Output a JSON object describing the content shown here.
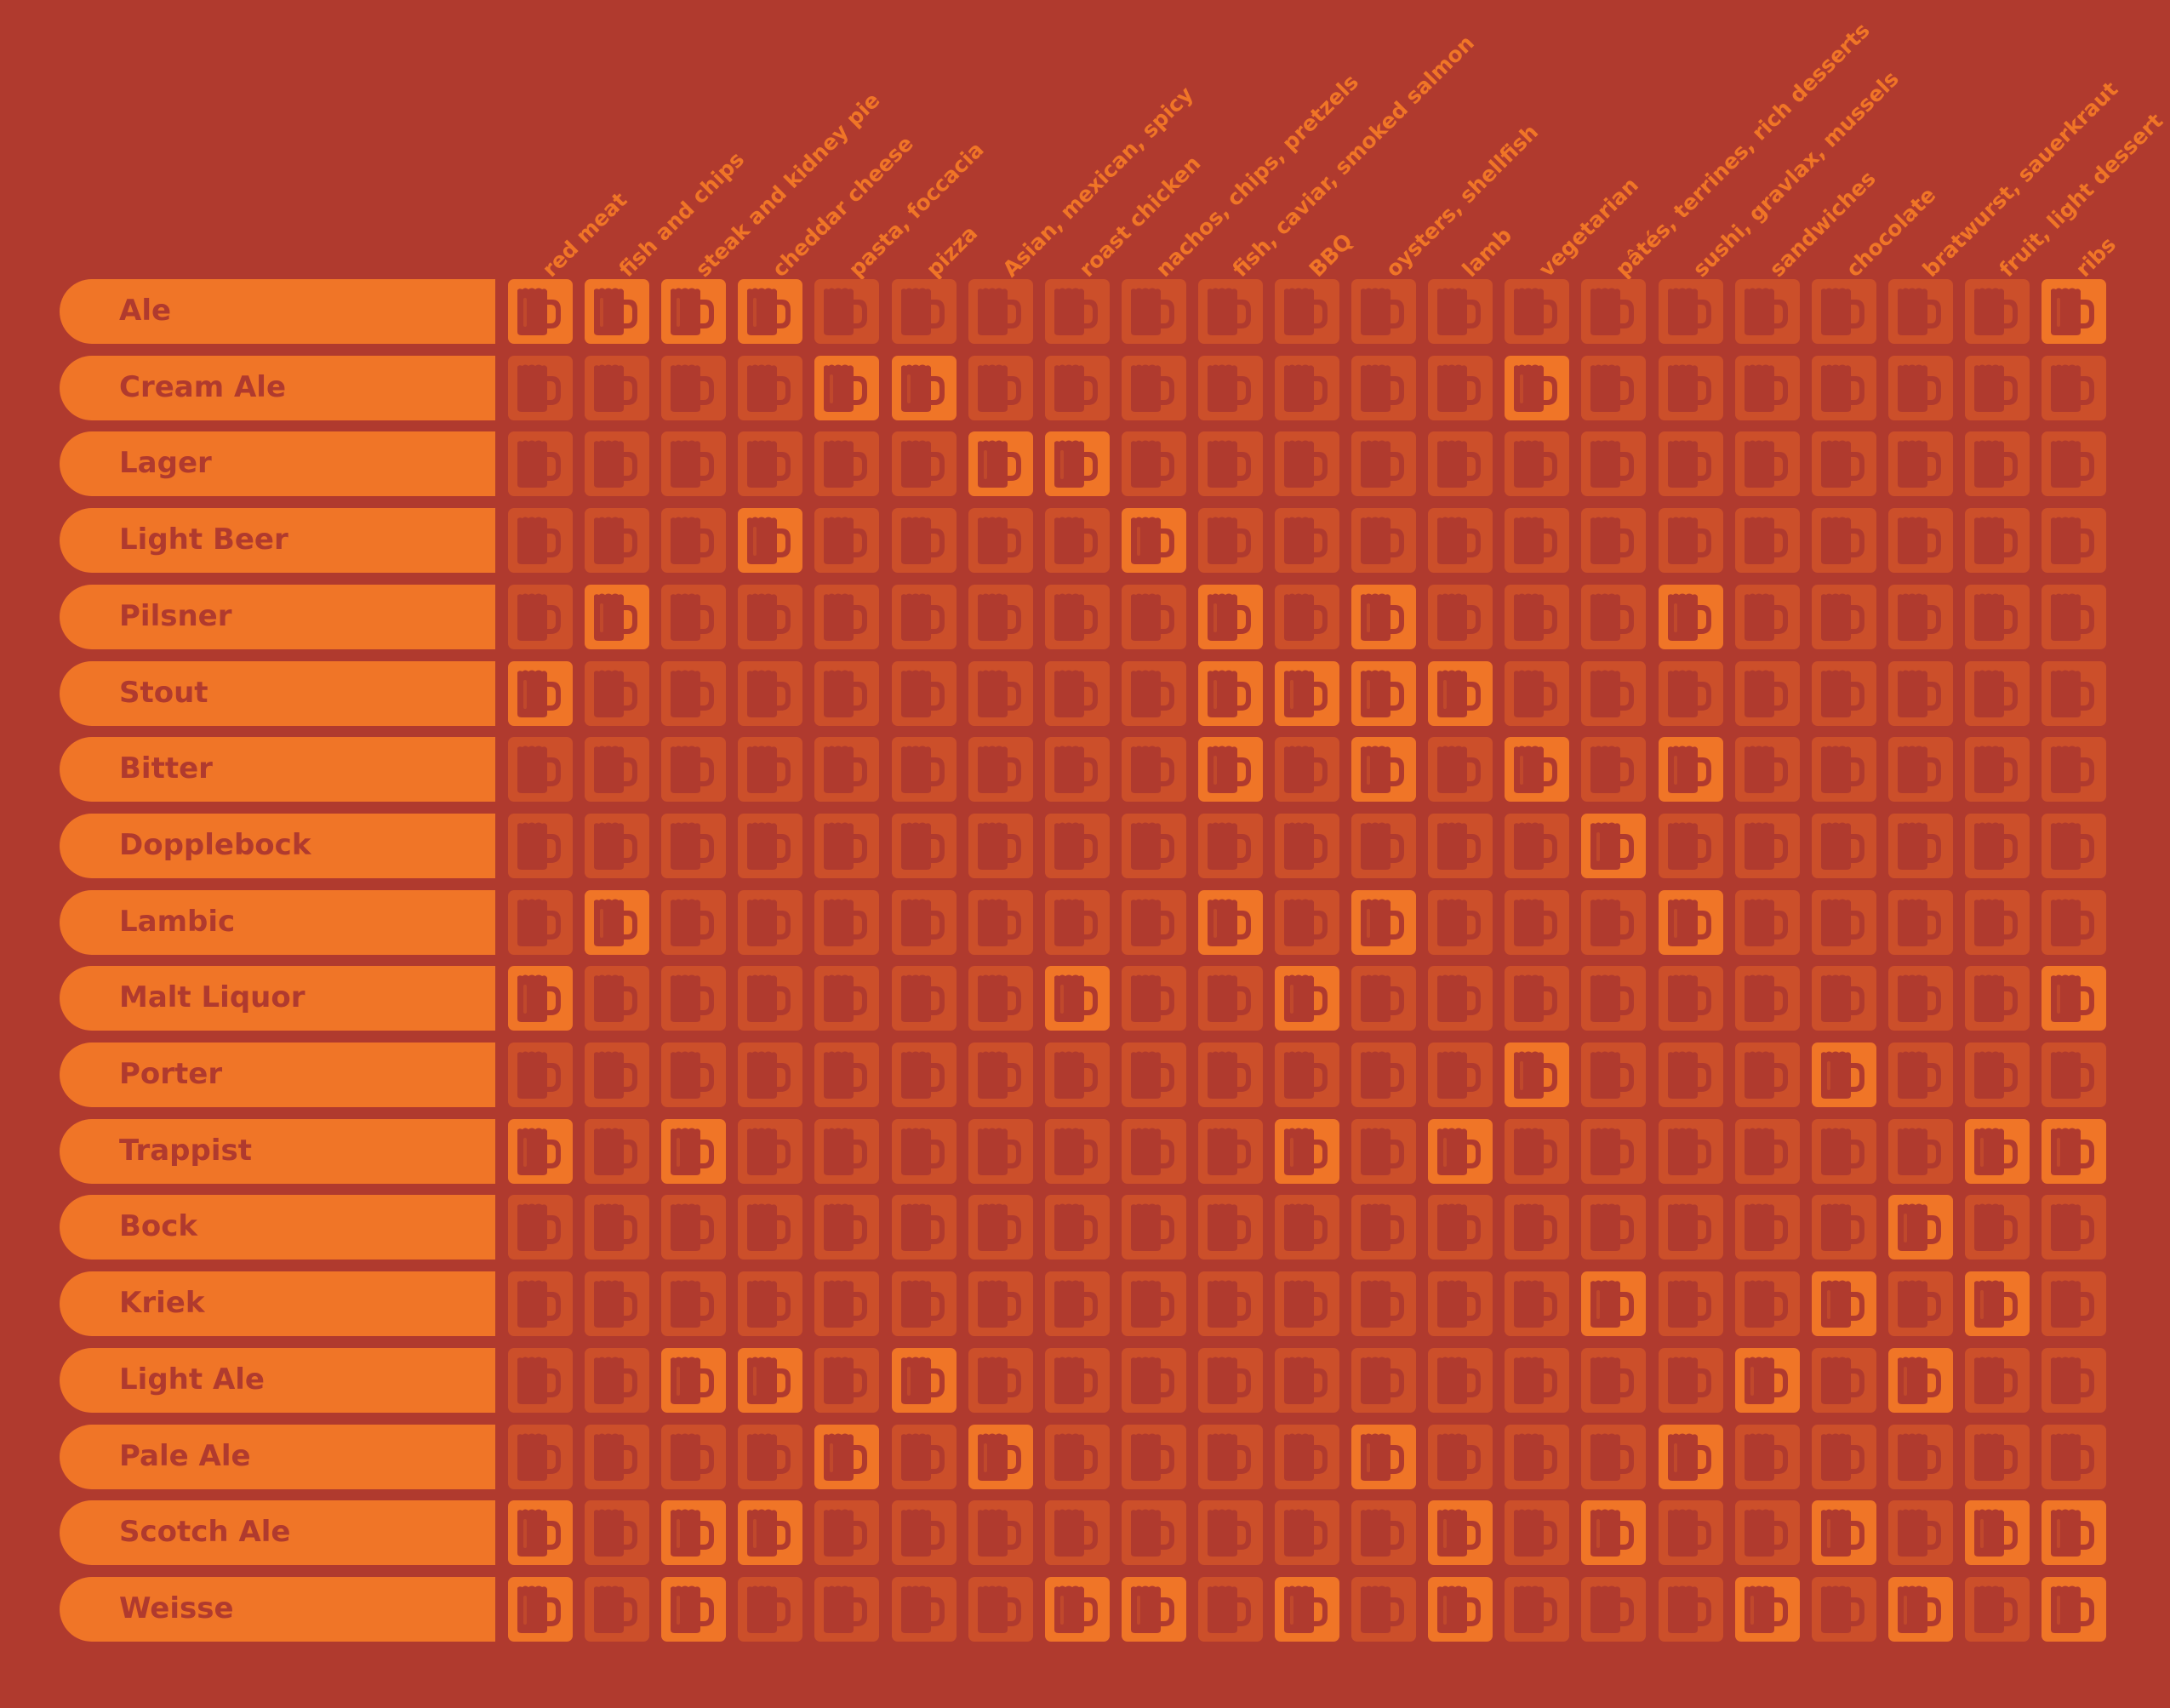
{
  "colors": {
    "background": "#b03a2e",
    "accent": "#f07527",
    "cell_dim": "#cc4f2a",
    "mug": "#b03a2e"
  },
  "icon": "beer-mug-icon",
  "chart_data": {
    "type": "table",
    "foods": [
      "red meat",
      "fish and chips",
      "steak and kidney pie",
      "cheddar cheese",
      "pasta, foccacia",
      "pizza",
      "Asian, mexican, spicy",
      "roast chicken",
      "nachos, chips, pretzels",
      "fish, caviar, smoked salmon",
      "BBQ",
      "oysters, shellfish",
      "lamb",
      "vegetarian",
      "pâtés, terrines, rich desserts",
      "sushi, gravlax, mussels",
      "sandwiches",
      "chocolate",
      "bratwurst, sauerkraut",
      "fruit, light dessert",
      "ribs"
    ],
    "beers": [
      "Ale",
      "Cream Ale",
      "Lager",
      "Light Beer",
      "Pilsner",
      "Stout",
      "Bitter",
      "Dopplebock",
      "Lambic",
      "Malt Liquor",
      "Porter",
      "Trappist",
      "Bock",
      "Kriek",
      "Light Ale",
      "Pale Ale",
      "Scotch Ale",
      "Weisse"
    ],
    "pairings": [
      [
        1,
        1,
        1,
        1,
        0,
        0,
        0,
        0,
        0,
        0,
        0,
        0,
        0,
        0,
        0,
        0,
        0,
        0,
        0,
        0,
        1
      ],
      [
        0,
        0,
        0,
        0,
        1,
        1,
        0,
        0,
        0,
        0,
        0,
        0,
        0,
        1,
        0,
        0,
        0,
        0,
        0,
        0,
        0
      ],
      [
        0,
        0,
        0,
        0,
        0,
        0,
        1,
        1,
        0,
        0,
        0,
        0,
        0,
        0,
        0,
        0,
        0,
        0,
        0,
        0,
        0
      ],
      [
        0,
        0,
        0,
        1,
        0,
        0,
        0,
        0,
        1,
        0,
        0,
        0,
        0,
        0,
        0,
        0,
        0,
        0,
        0,
        0,
        0
      ],
      [
        0,
        1,
        0,
        0,
        0,
        0,
        0,
        0,
        0,
        1,
        0,
        1,
        0,
        0,
        0,
        1,
        0,
        0,
        0,
        0,
        0
      ],
      [
        1,
        0,
        0,
        0,
        0,
        0,
        0,
        0,
        0,
        1,
        1,
        1,
        1,
        0,
        0,
        0,
        0,
        0,
        0,
        0,
        0
      ],
      [
        0,
        0,
        0,
        0,
        0,
        0,
        0,
        0,
        0,
        1,
        0,
        1,
        0,
        1,
        0,
        1,
        0,
        0,
        0,
        0,
        0
      ],
      [
        0,
        0,
        0,
        0,
        0,
        0,
        0,
        0,
        0,
        0,
        0,
        0,
        0,
        0,
        1,
        0,
        0,
        0,
        0,
        0,
        0
      ],
      [
        0,
        1,
        0,
        0,
        0,
        0,
        0,
        0,
        0,
        1,
        0,
        1,
        0,
        0,
        0,
        1,
        0,
        0,
        0,
        0,
        0
      ],
      [
        1,
        0,
        0,
        0,
        0,
        0,
        0,
        1,
        0,
        0,
        1,
        0,
        0,
        0,
        0,
        0,
        0,
        0,
        0,
        0,
        1
      ],
      [
        0,
        0,
        0,
        0,
        0,
        0,
        0,
        0,
        0,
        0,
        0,
        0,
        0,
        1,
        0,
        0,
        0,
        1,
        0,
        0,
        0
      ],
      [
        1,
        0,
        1,
        0,
        0,
        0,
        0,
        0,
        0,
        0,
        1,
        0,
        1,
        0,
        0,
        0,
        0,
        0,
        0,
        1,
        1
      ],
      [
        0,
        0,
        0,
        0,
        0,
        0,
        0,
        0,
        0,
        0,
        0,
        0,
        0,
        0,
        0,
        0,
        0,
        0,
        1,
        0,
        0
      ],
      [
        0,
        0,
        0,
        0,
        0,
        0,
        0,
        0,
        0,
        0,
        0,
        0,
        0,
        0,
        1,
        0,
        0,
        1,
        0,
        1,
        0
      ],
      [
        0,
        0,
        1,
        1,
        0,
        1,
        0,
        0,
        0,
        0,
        0,
        0,
        0,
        0,
        0,
        0,
        1,
        0,
        1,
        0,
        0
      ],
      [
        0,
        0,
        0,
        0,
        1,
        0,
        1,
        0,
        0,
        0,
        0,
        1,
        0,
        0,
        0,
        1,
        0,
        0,
        0,
        0,
        0
      ],
      [
        1,
        0,
        1,
        1,
        0,
        0,
        0,
        0,
        0,
        0,
        0,
        0,
        1,
        0,
        1,
        0,
        0,
        1,
        0,
        1,
        1
      ],
      [
        1,
        0,
        1,
        0,
        0,
        0,
        0,
        1,
        1,
        0,
        1,
        0,
        1,
        0,
        0,
        0,
        1,
        0,
        1,
        0,
        1
      ]
    ]
  }
}
